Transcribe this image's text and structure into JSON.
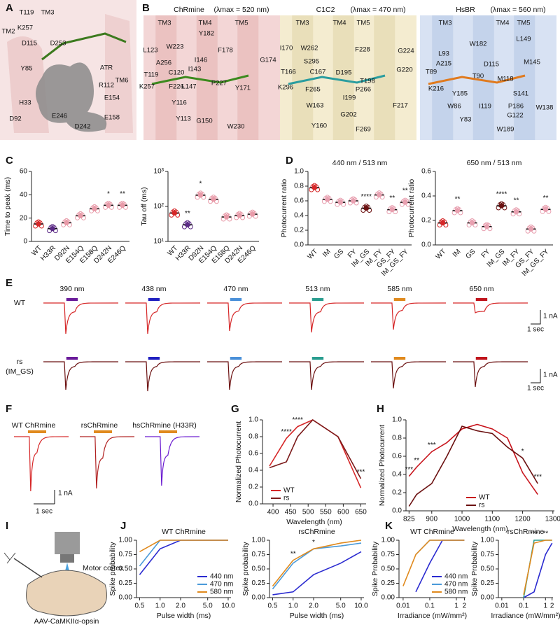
{
  "panel_labels": [
    "A",
    "B",
    "C",
    "D",
    "E",
    "F",
    "G",
    "H",
    "I",
    "J",
    "K"
  ],
  "structures": {
    "A": {
      "residues": [
        "TM2",
        "T119",
        "TM3",
        "K257",
        "D115",
        "D253",
        "ATR",
        "Y85",
        "R112",
        "TM6",
        {
          "text": "H33",
          "color": "#d020d0"
        },
        "E154",
        "E246",
        "E158",
        "D92",
        "D242"
      ]
    },
    "B": [
      {
        "protein": "ChRmine",
        "lambda": "(λmax = 520 nm)",
        "color": "#c0504d",
        "background": "#f3d6d6",
        "residues": [
          "TM3",
          "TM4",
          "TM5",
          "Y182",
          "W223",
          "L123",
          "F178",
          "A256",
          {
            "text": "I146",
            "color": "#d020d0"
          },
          {
            "text": "G174",
            "color": "#d020d0"
          },
          "I143",
          "C120",
          "T119",
          "K257",
          "F226",
          "L147",
          "P227",
          "Y171",
          "Y116",
          "Y113",
          "G150",
          "W230"
        ]
      },
      {
        "protein": "C1C2",
        "lambda": "(λmax = 470 nm)",
        "color": "#b09a3a",
        "background": "#f4ecd0",
        "residues": [
          "TM3",
          "TM4",
          "TM5",
          "I170",
          "W262",
          "F228",
          "S295",
          "G224",
          "T166",
          "C167",
          "D195",
          "G220",
          "T198",
          "K296",
          "F265",
          "P266",
          "I199",
          "W163",
          "F217",
          "G202",
          "Y160",
          "F269"
        ]
      },
      {
        "protein": "HsBR",
        "lambda": "(λmax = 560 nm)",
        "color": "#5a80c0",
        "background": "#d8e2f3",
        "residues": [
          "TM3",
          "TM4",
          "TM5",
          "W182",
          "L149",
          "L93",
          "A215",
          "D115",
          "M145",
          "T89",
          "T90",
          "M118",
          "K216",
          "Y185",
          "S141",
          "W86",
          "I119",
          "P186",
          "W138",
          "G122",
          "Y83",
          "W189"
        ]
      }
    ]
  },
  "chart_data": [
    {
      "type": "dot",
      "ylabel": "Time to peak (ms)",
      "categories": [
        "WT",
        "H33R",
        "D92N",
        "E154Q",
        "E158Q",
        "D242N",
        "E246Q"
      ],
      "values": [
        15,
        11,
        16,
        22,
        28,
        31,
        31
      ],
      "colors": [
        "#d62728",
        "#5b2a86",
        "#e89aa8",
        "#e89aa8",
        "#e89aa8",
        "#e89aa8",
        "#e89aa8"
      ],
      "significance": [
        null,
        null,
        null,
        null,
        null,
        "*",
        "**"
      ],
      "ylim": [
        0,
        60
      ],
      "yticks": [
        0,
        20,
        40,
        60
      ]
    },
    {
      "type": "dot",
      "ylabel": "Tau off (ms)",
      "yscale": "log",
      "categories": [
        "WT",
        "H33R",
        "D92N",
        "E154Q",
        "E158Q",
        "D242N",
        "E246Q"
      ],
      "values": [
        65,
        30,
        210,
        160,
        50,
        55,
        60
      ],
      "colors": [
        "#d62728",
        "#5b2a86",
        "#e89aa8",
        "#e89aa8",
        "#e89aa8",
        "#e89aa8",
        "#e89aa8"
      ],
      "significance": [
        null,
        "**",
        "*",
        null,
        null,
        null,
        null
      ],
      "ylim": [
        10,
        1000
      ],
      "yticks": [
        {
          "value": 10,
          "label": "10¹"
        },
        {
          "value": 100,
          "label": "10²"
        },
        {
          "value": 1000,
          "label": "10³"
        }
      ]
    },
    {
      "type": "dot",
      "title": "440 nm / 513 nm",
      "ylabel": "Photocurrent ratio",
      "categories": [
        "WT",
        "IM",
        "GS",
        "FY",
        "IM_GS",
        "IM_FY",
        "GS_FY",
        "IM_GS_FY"
      ],
      "values": [
        0.78,
        0.62,
        0.58,
        0.6,
        0.5,
        0.68,
        0.48,
        0.58
      ],
      "colors": [
        "#d62728",
        "#e8a0b0",
        "#e8a0b0",
        "#e8a0b0",
        "#6b1010",
        "#e8a0b0",
        "#e8a0b0",
        "#e8a0b0"
      ],
      "significance": [
        null,
        null,
        null,
        null,
        "****",
        null,
        "**",
        "**"
      ],
      "ylim": [
        0,
        1
      ],
      "yticks": [
        {
          "value": 0,
          "label": "0.0"
        },
        0.2,
        0.4,
        0.6,
        0.8,
        {
          "value": 1,
          "label": "1.0"
        }
      ]
    },
    {
      "type": "dot",
      "title": "650 nm / 513 nm",
      "ylabel": "Photocurrent ratio",
      "categories": [
        "WT",
        "IM",
        "GS",
        "FY",
        "IM_GS",
        "IM_FY",
        "GS_FY",
        "IM_GS_FY"
      ],
      "values": [
        0.18,
        0.28,
        0.18,
        0.15,
        0.32,
        0.27,
        0.13,
        0.29
      ],
      "colors": [
        "#d62728",
        "#e8a0b0",
        "#e8a0b0",
        "#e8a0b0",
        "#6b1010",
        "#e8a0b0",
        "#e8a0b0",
        "#e8a0b0"
      ],
      "significance": [
        null,
        "**",
        null,
        null,
        "****",
        "**",
        null,
        "**"
      ],
      "ylim": [
        0,
        0.6
      ],
      "yticks": [
        {
          "value": 0,
          "label": "0.0"
        },
        0.2,
        0.4,
        0.6
      ]
    },
    {
      "type": "line",
      "xlabel": "Wavelength (nm)",
      "ylabel": "Normalized Photocurrent",
      "x": [
        390,
        438,
        470,
        513,
        585,
        650
      ],
      "series": [
        {
          "name": "WT",
          "color": "#d62728",
          "values": [
            0.45,
            0.78,
            0.92,
            1.0,
            0.8,
            0.19
          ]
        },
        {
          "name": "rs",
          "color": "#7b1a1a",
          "values": [
            0.43,
            0.5,
            0.8,
            1.0,
            0.8,
            0.3
          ]
        }
      ],
      "annotations": [
        {
          "x": 438,
          "label": "****"
        },
        {
          "x": 470,
          "label": "****"
        },
        {
          "x": 650,
          "label": "***"
        }
      ],
      "legend": "lower left",
      "xlim": [
        370,
        665
      ],
      "xticks": [
        400,
        450,
        500,
        550,
        600,
        650
      ],
      "ylim": [
        0,
        1
      ],
      "yticks": [
        {
          "value": 0,
          "label": "0.0"
        },
        0.2,
        0.4,
        0.6,
        0.8,
        {
          "value": 1,
          "label": "1.0"
        }
      ]
    },
    {
      "type": "line",
      "xlabel": "Wavelength (nm)",
      "ylabel": "Normalized Photocurrent",
      "x": [
        825,
        850,
        900,
        925,
        950,
        1000,
        1050,
        1100,
        1150,
        1200,
        1250
      ],
      "series": [
        {
          "name": "WT",
          "color": "#c8141c",
          "values": [
            0.38,
            0.48,
            0.65,
            0.7,
            0.75,
            0.9,
            0.95,
            0.9,
            0.8,
            0.42,
            0.18
          ]
        },
        {
          "name": "rs",
          "color": "#6b1010",
          "values": [
            0.05,
            0.18,
            0.3,
            0.45,
            0.6,
            0.93,
            0.88,
            0.85,
            0.7,
            0.58,
            0.3
          ]
        }
      ],
      "annotations": [
        {
          "x": 825,
          "label": "***"
        },
        {
          "x": 850,
          "label": "**"
        },
        {
          "x": 900,
          "label": "***"
        },
        {
          "x": 1200,
          "label": "*"
        },
        {
          "x": 1250,
          "label": "***"
        }
      ],
      "legend": "lower center",
      "xlim": [
        815,
        1305
      ],
      "xticks": [
        825,
        900,
        1000,
        1100,
        1200,
        1300
      ],
      "ylim": [
        0,
        1
      ],
      "yticks": [
        {
          "value": 0,
          "label": "0.0"
        },
        0.2,
        0.4,
        0.6,
        0.8,
        {
          "value": 1,
          "label": "1.0"
        }
      ]
    },
    {
      "type": "line",
      "title": "WT ChRmine",
      "xlabel": "Pulse width (ms)",
      "ylabel": "Spike probability",
      "xscale": "log",
      "x": [
        0.5,
        1,
        2,
        5,
        10
      ],
      "series": [
        {
          "name": "440 nm",
          "color": "#2b2bd0",
          "values": [
            0.4,
            0.85,
            1,
            1,
            1
          ]
        },
        {
          "name": "470 nm",
          "color": "#4a9ad9",
          "values": [
            0.55,
            1,
            1,
            1,
            1
          ]
        },
        {
          "name": "580 nm",
          "color": "#e08a1e",
          "values": [
            0.8,
            1,
            1,
            1,
            1
          ]
        }
      ],
      "legend": "lower right",
      "xlim": [
        0.45,
        11
      ],
      "xticks": [
        0.5,
        {
          "value": 1,
          "label": "1.0"
        },
        {
          "value": 2,
          "label": "2.0"
        },
        {
          "value": 5,
          "label": "5.0"
        },
        {
          "value": 10,
          "label": "10.0"
        }
      ],
      "ylim": [
        0,
        1
      ],
      "yticks": [
        {
          "value": 0,
          "label": "0.00"
        },
        0.25,
        {
          "value": 0.5,
          "label": "0.50"
        },
        0.75,
        {
          "value": 1,
          "label": "1.00"
        }
      ]
    },
    {
      "type": "line",
      "title": "rsChRmine",
      "xlabel": "Pulse width (ms)",
      "ylabel": "Spike probability",
      "xscale": "log",
      "x": [
        0.5,
        1,
        2,
        5,
        10
      ],
      "series": [
        {
          "name": "440 nm",
          "color": "#2b2bd0",
          "values": [
            0.05,
            0.1,
            0.4,
            0.6,
            0.8
          ]
        },
        {
          "name": "470 nm",
          "color": "#4a9ad9",
          "values": [
            0.15,
            0.6,
            0.85,
            0.9,
            0.95
          ]
        },
        {
          "name": "580 nm",
          "color": "#e08a1e",
          "values": [
            0.2,
            0.65,
            0.85,
            0.95,
            1
          ]
        }
      ],
      "annotations": [
        {
          "x": 1,
          "label": "**"
        },
        {
          "x": 2,
          "label": "*"
        }
      ],
      "xlim": [
        0.45,
        11
      ],
      "xticks": [
        0.5,
        {
          "value": 1,
          "label": "1.0"
        },
        {
          "value": 2,
          "label": "2.0"
        },
        {
          "value": 5,
          "label": "5.0"
        },
        {
          "value": 10,
          "label": "10.0"
        }
      ],
      "ylim": [
        0,
        1
      ],
      "yticks": [
        {
          "value": 0,
          "label": "0.00"
        },
        0.25,
        {
          "value": 0.5,
          "label": "0.50"
        },
        0.75,
        {
          "value": 1,
          "label": "1.00"
        }
      ]
    },
    {
      "type": "line",
      "title": "WT ChRmine",
      "xlabel": "Irradiance (mW/mm²)",
      "ylabel": "Spike Probability",
      "xscale": "log",
      "x": [
        0.01,
        0.03,
        0.1,
        0.3,
        1,
        2
      ],
      "series": [
        {
          "name": "440 nm",
          "color": "#2b2bd0",
          "values": [
            null,
            0.1,
            0.6,
            1,
            1,
            1
          ]
        },
        {
          "name": "470 nm",
          "color": "#4a9ad9",
          "values": [
            null,
            0.75,
            1,
            1,
            1,
            1
          ]
        },
        {
          "name": "580 nm",
          "color": "#e08a1e",
          "values": [
            0.2,
            0.75,
            1,
            1,
            1,
            1
          ]
        }
      ],
      "legend": "lower right",
      "xlim": [
        0.007,
        2.2
      ],
      "xticks": [
        0.01,
        0.1,
        1,
        2
      ],
      "ylim": [
        0,
        1
      ],
      "yticks": [
        {
          "value": 0,
          "label": "0.00"
        },
        0.25,
        {
          "value": 0.5,
          "label": "0.50"
        },
        0.75,
        {
          "value": 1,
          "label": "1.00"
        }
      ]
    },
    {
      "type": "line",
      "title": "rsChRmine",
      "xlabel": "Irradiance (mW/mm²)",
      "ylabel": "Spike Probability",
      "xscale": "log",
      "x": [
        0.01,
        0.03,
        0.1,
        0.3,
        1,
        2
      ],
      "series": [
        {
          "name": "440 nm",
          "color": "#2b2bd0",
          "values": [
            null,
            null,
            0,
            0.1,
            0.75,
            0.95
          ]
        },
        {
          "name": "470 nm",
          "color": "#2a9d8f",
          "values": [
            null,
            null,
            0,
            1,
            1,
            1
          ]
        },
        {
          "name": "580 nm",
          "color": "#e08a1e",
          "values": [
            null,
            null,
            0.05,
            0.95,
            1,
            1
          ]
        }
      ],
      "annotations": [
        {
          "x": 0.3,
          "label": "***"
        },
        {
          "x": 1,
          "label": "**"
        }
      ],
      "xlim": [
        0.007,
        2.2
      ],
      "xticks": [
        0.01,
        0.1,
        1,
        2
      ],
      "ylim": [
        0,
        1
      ],
      "yticks": [
        {
          "value": 0,
          "label": "0.00"
        },
        0.25,
        {
          "value": 0.5,
          "label": "0.50"
        },
        0.75,
        {
          "value": 1,
          "label": "1.00"
        }
      ]
    }
  ],
  "traces_E": {
    "stimuli": [
      {
        "label": "390 nm",
        "color": "#6a1b9a"
      },
      {
        "label": "438 nm",
        "color": "#2020c0"
      },
      {
        "label": "470 nm",
        "color": "#4a90d9"
      },
      {
        "label": "513 nm",
        "color": "#2a9d8f"
      },
      {
        "label": "585 nm",
        "color": "#e08a1e"
      },
      {
        "label": "650 nm",
        "color": "#c0141c"
      }
    ],
    "rows": [
      {
        "labels": [
          "WT"
        ],
        "color": "#d62728"
      },
      {
        "labels": [
          "rs",
          "(IM_GS)"
        ],
        "color": "#6b1010"
      }
    ],
    "scale": [
      "1 nA",
      "1 sec"
    ]
  },
  "traces_F": {
    "traces": [
      {
        "label": "WT ChRmine",
        "color": "#d62728"
      },
      {
        "label": "rsChRmine",
        "color": "#b02020"
      },
      {
        "label": "hsChRmine (H33R)",
        "color": "#6a1bd0"
      }
    ],
    "stimulus_color": "#e08a1e",
    "scale": [
      "1 nA",
      "1 sec"
    ]
  },
  "diagram_I": {
    "region": "Motor cortex",
    "virus": "AAV-CaMKIIα-opsin"
  }
}
